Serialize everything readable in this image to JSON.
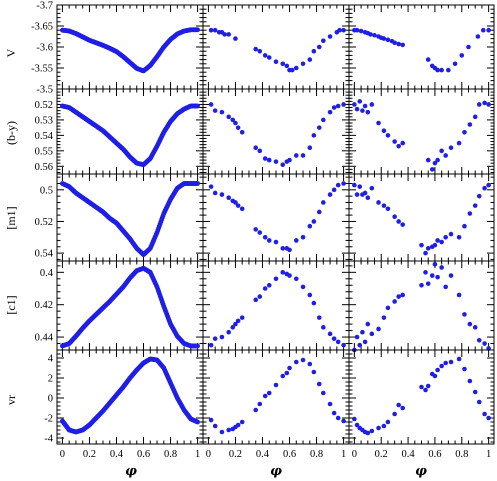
{
  "chart_data": {
    "type": "scatter",
    "layout": {
      "rows": 5,
      "cols": 3
    },
    "point_color": "#1f1fe6",
    "x_axis": {
      "label": "φ",
      "range": [
        -0.04,
        1.04
      ],
      "ticks": [
        0,
        0.2,
        0.4,
        0.6,
        0.8,
        1
      ],
      "tick_labels": [
        "0",
        "0.2",
        "0.4",
        "0.6",
        "0.8",
        "1"
      ]
    },
    "rows": [
      {
        "key": "V",
        "label": "V",
        "range": [
          -3.7,
          -3.5
        ],
        "inverted": true,
        "ticks": [
          -3.7,
          -3.65,
          -3.6,
          -3.55,
          -3.5
        ],
        "tick_labels": [
          "-3.7",
          "-3.65",
          "-3.6",
          "-3.55",
          "-3.5"
        ]
      },
      {
        "key": "by",
        "label": "(b-y)",
        "range": [
          0.51,
          0.565
        ],
        "inverted": true,
        "ticks": [
          0.52,
          0.53,
          0.54,
          0.55,
          0.56
        ],
        "tick_labels": [
          "0.52",
          "0.53",
          "0.54",
          "0.55",
          "0.56"
        ]
      },
      {
        "key": "m1",
        "label": "[m1]",
        "range": [
          0.49,
          0.545
        ],
        "inverted": true,
        "ticks": [
          0.5,
          0.52,
          0.54
        ],
        "tick_labels": [
          "0.5",
          "0.52",
          "0.54"
        ]
      },
      {
        "key": "c1",
        "label": "[c1]",
        "range": [
          0.393,
          0.448
        ],
        "inverted": true,
        "ticks": [
          0.4,
          0.42,
          0.44
        ],
        "tick_labels": [
          "0.4",
          "0.42",
          "0.44"
        ]
      },
      {
        "key": "vr",
        "label": "vr",
        "range": [
          -4.6,
          4.8
        ],
        "inverted": false,
        "ticks": [
          -4,
          -2,
          0,
          2,
          4
        ],
        "tick_labels": [
          "-4",
          "-2",
          "0",
          "2",
          "4"
        ]
      }
    ],
    "panels": [
      [
        {
          "x": [
            0.0,
            0.05,
            0.1,
            0.15,
            0.2,
            0.25,
            0.3,
            0.35,
            0.4,
            0.45,
            0.5,
            0.55,
            0.6,
            0.65,
            0.7,
            0.75,
            0.8,
            0.85,
            0.9,
            0.95,
            1.0
          ],
          "y": [
            -3.64,
            -3.638,
            -3.632,
            -3.624,
            -3.616,
            -3.61,
            -3.604,
            -3.597,
            -3.589,
            -3.577,
            -3.563,
            -3.549,
            -3.543,
            -3.556,
            -3.577,
            -3.6,
            -3.618,
            -3.631,
            -3.638,
            -3.641,
            -3.641
          ]
        },
        {
          "x": [
            0.02,
            0.05,
            0.08,
            0.1,
            0.12,
            0.15,
            0.2,
            0.35,
            0.38,
            0.42,
            0.45,
            0.5,
            0.55,
            0.58,
            0.6,
            0.62,
            0.65,
            0.7,
            0.75,
            0.78,
            0.82,
            0.85,
            0.9,
            0.95,
            0.97,
            1.0
          ],
          "y": [
            -3.64,
            -3.64,
            -3.635,
            -3.635,
            -3.63,
            -3.63,
            -3.62,
            -3.595,
            -3.59,
            -3.58,
            -3.575,
            -3.565,
            -3.56,
            -3.555,
            -3.545,
            -3.545,
            -3.55,
            -3.56,
            -3.57,
            -3.59,
            -3.6,
            -3.615,
            -3.625,
            -3.635,
            -3.64,
            -3.64
          ]
        },
        {
          "x": [
            0.0,
            0.02,
            0.05,
            0.08,
            0.1,
            0.12,
            0.15,
            0.18,
            0.2,
            0.22,
            0.25,
            0.28,
            0.3,
            0.33,
            0.36,
            0.55,
            0.58,
            0.6,
            0.62,
            0.65,
            0.7,
            0.75,
            0.8,
            0.85,
            0.92,
            0.96,
            1.0
          ],
          "y": [
            -3.64,
            -3.64,
            -3.638,
            -3.635,
            -3.633,
            -3.63,
            -3.628,
            -3.625,
            -3.622,
            -3.62,
            -3.617,
            -3.614,
            -3.61,
            -3.607,
            -3.605,
            -3.57,
            -3.555,
            -3.55,
            -3.545,
            -3.545,
            -3.545,
            -3.56,
            -3.58,
            -3.6,
            -3.625,
            -3.64,
            -3.64
          ]
        }
      ],
      [
        {
          "x": [
            0.0,
            0.05,
            0.1,
            0.15,
            0.2,
            0.25,
            0.3,
            0.35,
            0.4,
            0.45,
            0.5,
            0.55,
            0.6,
            0.65,
            0.7,
            0.75,
            0.8,
            0.85,
            0.9,
            0.95,
            1.0
          ],
          "y": [
            0.521,
            0.522,
            0.525,
            0.528,
            0.531,
            0.534,
            0.537,
            0.541,
            0.545,
            0.549,
            0.554,
            0.558,
            0.559,
            0.555,
            0.547,
            0.538,
            0.531,
            0.526,
            0.523,
            0.521,
            0.521
          ]
        },
        {
          "x": [
            0.02,
            0.05,
            0.1,
            0.15,
            0.18,
            0.2,
            0.22,
            0.25,
            0.35,
            0.38,
            0.42,
            0.45,
            0.5,
            0.55,
            0.58,
            0.6,
            0.65,
            0.7,
            0.75,
            0.78,
            0.82,
            0.85,
            0.9,
            0.93,
            0.96,
            1.0
          ],
          "y": [
            0.52,
            0.524,
            0.525,
            0.528,
            0.53,
            0.532,
            0.535,
            0.538,
            0.548,
            0.55,
            0.555,
            0.556,
            0.557,
            0.559,
            0.557,
            0.556,
            0.553,
            0.553,
            0.548,
            0.54,
            0.535,
            0.53,
            0.525,
            0.522,
            0.521,
            0.52
          ]
        },
        {
          "x": [
            0.0,
            0.02,
            0.04,
            0.06,
            0.08,
            0.1,
            0.13,
            0.18,
            0.22,
            0.25,
            0.3,
            0.33,
            0.36,
            0.55,
            0.58,
            0.6,
            0.62,
            0.65,
            0.68,
            0.72,
            0.78,
            0.82,
            0.86,
            0.9,
            0.93,
            0.97,
            1.0
          ],
          "y": [
            0.52,
            0.523,
            0.518,
            0.524,
            0.521,
            0.525,
            0.52,
            0.532,
            0.537,
            0.54,
            0.544,
            0.547,
            0.545,
            0.556,
            0.562,
            0.558,
            0.556,
            0.55,
            0.553,
            0.548,
            0.545,
            0.538,
            0.533,
            0.528,
            0.52,
            0.519,
            0.52
          ]
        }
      ],
      [
        {
          "x": [
            0.0,
            0.05,
            0.1,
            0.15,
            0.2,
            0.25,
            0.3,
            0.35,
            0.4,
            0.45,
            0.5,
            0.55,
            0.6,
            0.65,
            0.7,
            0.75,
            0.8,
            0.85,
            0.9,
            0.95,
            1.0
          ],
          "y": [
            0.496,
            0.498,
            0.502,
            0.505,
            0.508,
            0.511,
            0.514,
            0.518,
            0.521,
            0.526,
            0.531,
            0.537,
            0.541,
            0.537,
            0.527,
            0.515,
            0.506,
            0.499,
            0.496,
            0.496,
            0.496
          ]
        },
        {
          "x": [
            0.02,
            0.05,
            0.1,
            0.15,
            0.18,
            0.2,
            0.22,
            0.25,
            0.35,
            0.38,
            0.42,
            0.45,
            0.5,
            0.55,
            0.58,
            0.6,
            0.65,
            0.7,
            0.75,
            0.78,
            0.82,
            0.85,
            0.9,
            0.93,
            0.96,
            1.0
          ],
          "y": [
            0.498,
            0.502,
            0.503,
            0.505,
            0.507,
            0.508,
            0.51,
            0.512,
            0.525,
            0.527,
            0.53,
            0.532,
            0.533,
            0.537,
            0.537,
            0.538,
            0.532,
            0.53,
            0.523,
            0.52,
            0.514,
            0.508,
            0.503,
            0.5,
            0.497,
            0.496
          ]
        },
        {
          "x": [
            0.0,
            0.02,
            0.04,
            0.06,
            0.08,
            0.1,
            0.13,
            0.18,
            0.22,
            0.25,
            0.3,
            0.33,
            0.36,
            0.5,
            0.53,
            0.55,
            0.58,
            0.6,
            0.62,
            0.65,
            0.68,
            0.72,
            0.78,
            0.82,
            0.86,
            0.9,
            0.93,
            0.97,
            1.0
          ],
          "y": [
            0.497,
            0.503,
            0.498,
            0.503,
            0.502,
            0.505,
            0.499,
            0.508,
            0.51,
            0.512,
            0.517,
            0.52,
            0.522,
            0.535,
            0.54,
            0.537,
            0.536,
            0.535,
            0.532,
            0.533,
            0.53,
            0.528,
            0.53,
            0.523,
            0.515,
            0.51,
            0.504,
            0.499,
            0.497
          ]
        }
      ],
      [
        {
          "x": [
            0.0,
            0.05,
            0.1,
            0.15,
            0.2,
            0.25,
            0.3,
            0.35,
            0.4,
            0.45,
            0.5,
            0.55,
            0.6,
            0.65,
            0.7,
            0.75,
            0.8,
            0.85,
            0.9,
            0.95,
            1.0
          ],
          "y": [
            0.4455,
            0.444,
            0.4395,
            0.4345,
            0.43,
            0.426,
            0.422,
            0.418,
            0.4135,
            0.409,
            0.4035,
            0.399,
            0.3975,
            0.4,
            0.409,
            0.421,
            0.432,
            0.4395,
            0.444,
            0.4455,
            0.4455
          ]
        },
        {
          "x": [
            0.02,
            0.05,
            0.1,
            0.15,
            0.18,
            0.2,
            0.22,
            0.25,
            0.35,
            0.38,
            0.42,
            0.45,
            0.5,
            0.55,
            0.58,
            0.6,
            0.65,
            0.7,
            0.75,
            0.78,
            0.82,
            0.85,
            0.9,
            0.93,
            0.96,
            1.0
          ],
          "y": [
            0.445,
            0.441,
            0.44,
            0.437,
            0.434,
            0.432,
            0.43,
            0.428,
            0.417,
            0.415,
            0.41,
            0.408,
            0.404,
            0.4,
            0.401,
            0.402,
            0.404,
            0.409,
            0.414,
            0.419,
            0.428,
            0.434,
            0.438,
            0.441,
            0.443,
            0.445
          ]
        },
        {
          "x": [
            0.0,
            0.02,
            0.04,
            0.06,
            0.08,
            0.1,
            0.13,
            0.18,
            0.22,
            0.25,
            0.3,
            0.33,
            0.36,
            0.5,
            0.53,
            0.55,
            0.58,
            0.6,
            0.62,
            0.65,
            0.68,
            0.72,
            0.78,
            0.82,
            0.86,
            0.9,
            0.93,
            0.97,
            1.0
          ],
          "y": [
            0.448,
            0.44,
            0.445,
            0.437,
            0.443,
            0.432,
            0.438,
            0.435,
            0.428,
            0.422,
            0.418,
            0.415,
            0.414,
            0.408,
            0.4,
            0.407,
            0.402,
            0.395,
            0.403,
            0.397,
            0.409,
            0.402,
            0.414,
            0.426,
            0.432,
            0.434,
            0.442,
            0.444,
            0.447
          ]
        }
      ],
      [
        {
          "x": [
            0.0,
            0.05,
            0.1,
            0.15,
            0.2,
            0.25,
            0.3,
            0.35,
            0.4,
            0.45,
            0.5,
            0.55,
            0.6,
            0.65,
            0.7,
            0.75,
            0.8,
            0.85,
            0.9,
            0.95,
            1.0
          ],
          "y": [
            -2.3,
            -3.2,
            -3.4,
            -3.2,
            -2.7,
            -2.0,
            -1.3,
            -0.5,
            0.3,
            1.1,
            2.0,
            2.8,
            3.5,
            3.9,
            3.8,
            3.0,
            1.5,
            0.0,
            -1.2,
            -2.1,
            -2.4
          ]
        },
        {
          "x": [
            0.02,
            0.05,
            0.1,
            0.15,
            0.18,
            0.2,
            0.22,
            0.25,
            0.35,
            0.38,
            0.42,
            0.45,
            0.5,
            0.55,
            0.58,
            0.6,
            0.65,
            0.7,
            0.75,
            0.78,
            0.82,
            0.85,
            0.9,
            0.93,
            0.96,
            1.0
          ],
          "y": [
            -2.2,
            -2.8,
            -3.4,
            -3.2,
            -3.1,
            -2.9,
            -2.7,
            -2.4,
            -1.2,
            -0.6,
            0.2,
            0.5,
            1.3,
            2.2,
            2.5,
            3.0,
            3.6,
            3.8,
            3.4,
            2.6,
            1.4,
            0.5,
            -0.6,
            -1.5,
            -2.0,
            -2.3
          ]
        },
        {
          "x": [
            0.0,
            0.02,
            0.04,
            0.06,
            0.08,
            0.1,
            0.13,
            0.18,
            0.22,
            0.25,
            0.3,
            0.33,
            0.36,
            0.5,
            0.53,
            0.55,
            0.58,
            0.6,
            0.62,
            0.65,
            0.68,
            0.72,
            0.78,
            0.82,
            0.86,
            0.9,
            0.93,
            0.97,
            1.0
          ],
          "y": [
            -2.1,
            -2.7,
            -3.0,
            -3.2,
            -3.4,
            -3.5,
            -3.3,
            -3.0,
            -2.8,
            -2.4,
            -1.6,
            -0.7,
            -1.0,
            1.1,
            0.8,
            1.2,
            2.4,
            2.2,
            2.8,
            3.2,
            3.5,
            3.6,
            3.9,
            2.9,
            1.7,
            0.6,
            -0.4,
            -1.6,
            -2.0
          ]
        }
      ]
    ]
  }
}
